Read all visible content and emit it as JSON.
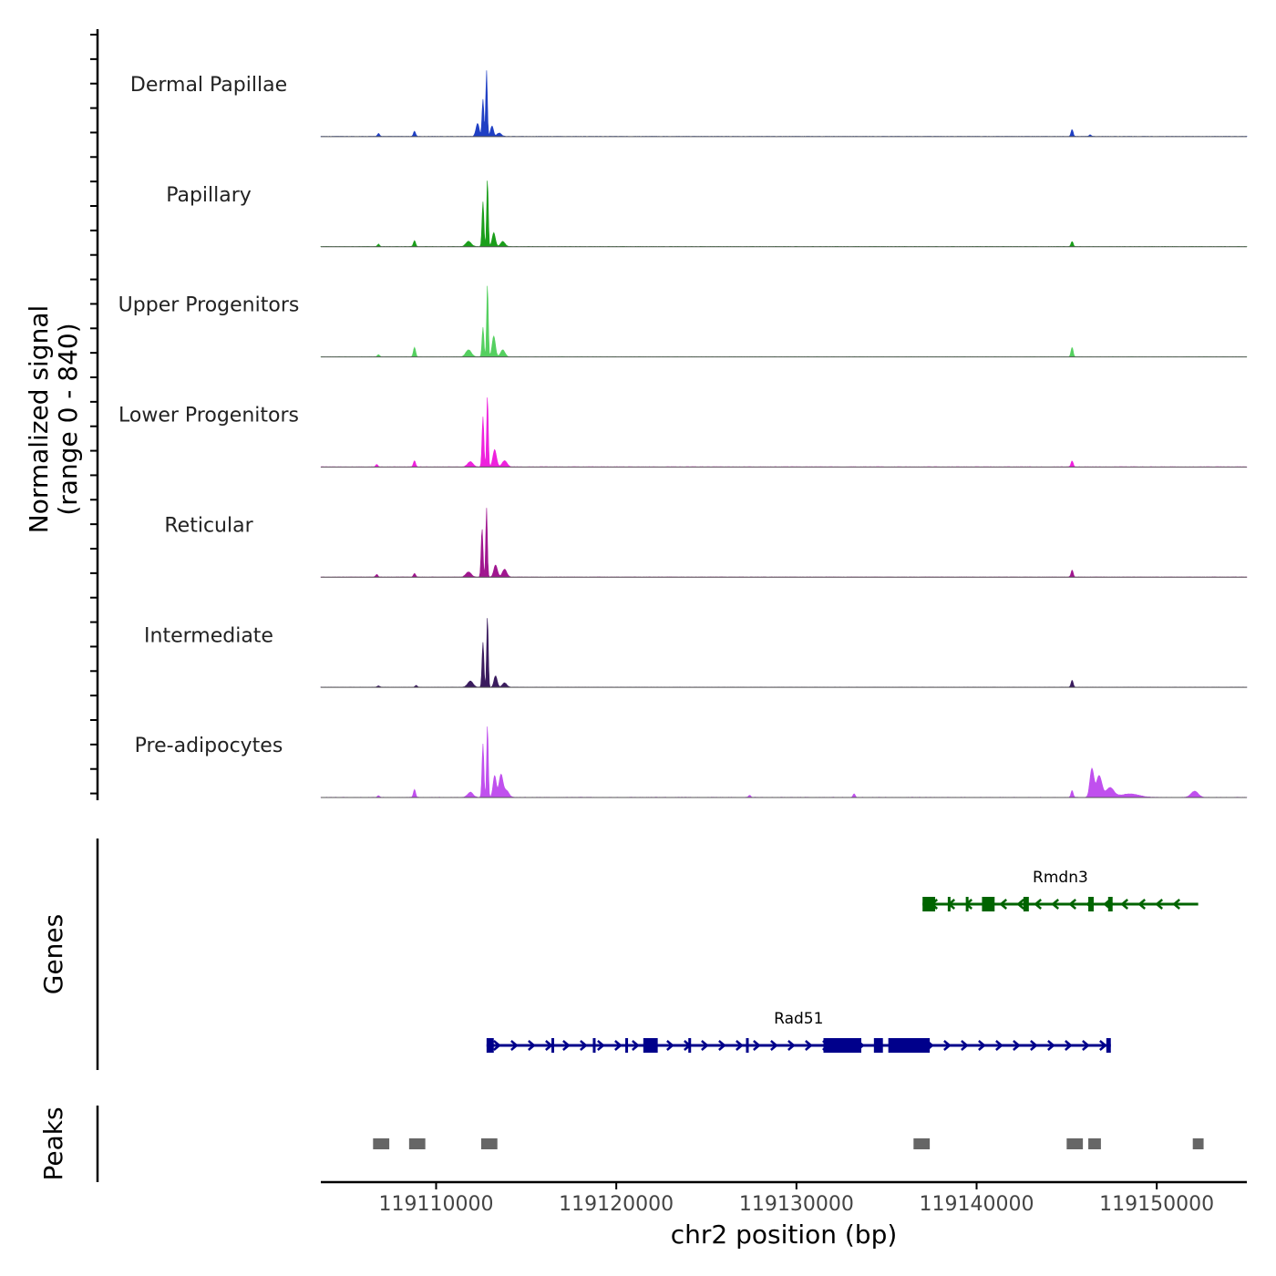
{
  "chart_data": {
    "type": "area",
    "chromosome": "chr2",
    "xlabel": "chr2 position (bp)",
    "x_ticks": [
      119110000,
      119120000,
      119130000,
      119140000,
      119150000
    ],
    "x_tick_labels": [
      "119110000",
      "119120000",
      "119130000",
      "119140000",
      "119150000"
    ],
    "xlim": [
      119103600,
      119155000
    ],
    "signal": {
      "ylabel_line1": "Normalized signal",
      "ylabel_line2": "(range 0 - 840)",
      "ylim": [
        0,
        840
      ],
      "tracks": [
        {
          "name": "Dermal Papillae",
          "color": "#1f3fc4",
          "peaks": [
            [
              119106800,
              35,
              60
            ],
            [
              119108800,
              60,
              60
            ],
            [
              119112300,
              150,
              90
            ],
            [
              119112600,
              430,
              50
            ],
            [
              119112800,
              760,
              45
            ],
            [
              119113100,
              120,
              80
            ],
            [
              119113500,
              40,
              120
            ],
            [
              119145300,
              80,
              60
            ],
            [
              119146300,
              20,
              60
            ]
          ]
        },
        {
          "name": "Papillary",
          "color": "#1a9e1a",
          "peaks": [
            [
              119106800,
              30,
              60
            ],
            [
              119108800,
              70,
              60
            ],
            [
              119111800,
              60,
              150
            ],
            [
              119112600,
              520,
              50
            ],
            [
              119112850,
              780,
              45
            ],
            [
              119113200,
              160,
              90
            ],
            [
              119113700,
              60,
              120
            ],
            [
              119145300,
              60,
              60
            ]
          ]
        },
        {
          "name": "Upper Progenitors",
          "color": "#55d060",
          "peaks": [
            [
              119106800,
              25,
              60
            ],
            [
              119108800,
              110,
              60
            ],
            [
              119111800,
              80,
              150
            ],
            [
              119112600,
              340,
              50
            ],
            [
              119112850,
              840,
              45
            ],
            [
              119113200,
              240,
              90
            ],
            [
              119113700,
              80,
              120
            ],
            [
              119145300,
              110,
              60
            ]
          ]
        },
        {
          "name": "Lower Progenitors",
          "color": "#ee22dd",
          "peaks": [
            [
              119106700,
              30,
              60
            ],
            [
              119108800,
              70,
              60
            ],
            [
              119111900,
              60,
              150
            ],
            [
              119112600,
              580,
              50
            ],
            [
              119112850,
              820,
              45
            ],
            [
              119113250,
              200,
              100
            ],
            [
              119113800,
              70,
              140
            ],
            [
              119145300,
              70,
              60
            ]
          ]
        },
        {
          "name": "Reticular",
          "color": "#a0168f",
          "peaks": [
            [
              119106700,
              30,
              60
            ],
            [
              119108800,
              40,
              60
            ],
            [
              119111800,
              60,
              150
            ],
            [
              119112550,
              560,
              50
            ],
            [
              119112800,
              800,
              45
            ],
            [
              119113300,
              140,
              100
            ],
            [
              119113800,
              90,
              120
            ],
            [
              119145300,
              80,
              60
            ]
          ]
        },
        {
          "name": "Intermediate",
          "color": "#3a1b5e",
          "peaks": [
            [
              119106800,
              15,
              60
            ],
            [
              119108900,
              20,
              60
            ],
            [
              119111900,
              70,
              150
            ],
            [
              119112600,
              520,
              50
            ],
            [
              119112850,
              820,
              45
            ],
            [
              119113300,
              130,
              90
            ],
            [
              119113800,
              50,
              120
            ],
            [
              119145300,
              80,
              60
            ]
          ]
        },
        {
          "name": "Pre-adipocytes",
          "color": "#c050ee",
          "peaks": [
            [
              119106800,
              20,
              60
            ],
            [
              119108800,
              90,
              60
            ],
            [
              119111900,
              60,
              150
            ],
            [
              119112600,
              620,
              50
            ],
            [
              119112850,
              840,
              45
            ],
            [
              119113250,
              250,
              90
            ],
            [
              119113600,
              260,
              110
            ],
            [
              119113900,
              80,
              140
            ],
            [
              119145300,
              80,
              60
            ],
            [
              119146400,
              330,
              110
            ],
            [
              119146800,
              250,
              150
            ],
            [
              119147400,
              110,
              220
            ],
            [
              119148500,
              40,
              500
            ],
            [
              119152100,
              70,
              200
            ],
            [
              119133200,
              40,
              60
            ],
            [
              119127400,
              25,
              60
            ]
          ]
        }
      ]
    },
    "genes": {
      "label": "Genes",
      "items": [
        {
          "name": "Rmdn3",
          "strand": "-",
          "color": "#006400",
          "start": 119137000,
          "end": 119152300,
          "exons": [
            [
              119137000,
              119137700
            ],
            [
              119138400,
              119138500
            ],
            [
              119139400,
              119139500
            ],
            [
              119140300,
              119141000
            ],
            [
              119142600,
              119142900
            ],
            [
              119146200,
              119146500
            ],
            [
              119147300,
              119147550
            ]
          ]
        },
        {
          "name": "Rad51",
          "strand": "+",
          "color": "#00008b",
          "start": 119112800,
          "end": 119147450,
          "exons": [
            [
              119112800,
              119113200
            ],
            [
              119116400,
              119116500
            ],
            [
              119118700,
              119118800
            ],
            [
              119120500,
              119120600
            ],
            [
              119121500,
              119122300
            ],
            [
              119124000,
              119124100
            ],
            [
              119127200,
              119127300
            ],
            [
              119131500,
              119133600
            ],
            [
              119134300,
              119134800
            ],
            [
              119135100,
              119137400
            ],
            [
              119147200,
              119147450
            ]
          ]
        }
      ]
    },
    "peaks": {
      "label": "Peaks",
      "color": "#666666",
      "regions": [
        [
          119106500,
          119107400
        ],
        [
          119108500,
          119109400
        ],
        [
          119112500,
          119113400
        ],
        [
          119136500,
          119137400
        ],
        [
          119145000,
          119145900
        ],
        [
          119146200,
          119146900
        ],
        [
          119152000,
          119152600
        ]
      ]
    }
  }
}
